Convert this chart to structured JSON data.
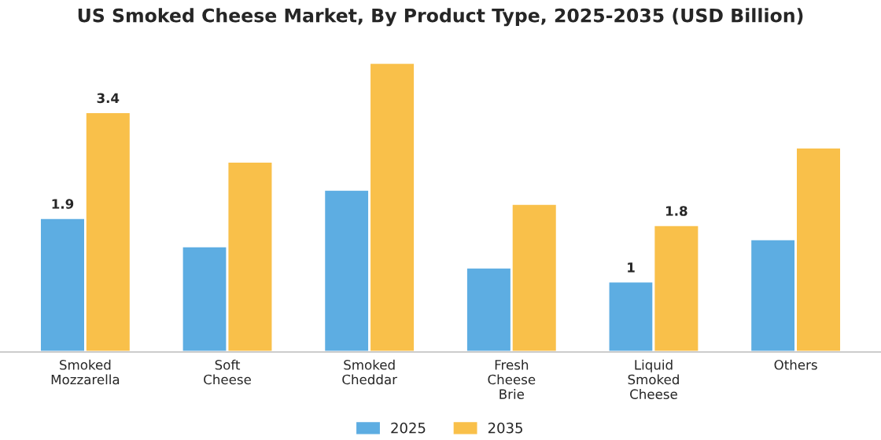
{
  "chart_data": {
    "type": "bar",
    "title": "US Smoked Cheese Market, By Product Type, 2025-2035 (USD Billion)",
    "categories": [
      "Smoked\nMozzarella",
      "Soft\nCheese",
      "Smoked\nCheddar",
      "Fresh\nCheese\nBrie",
      "Liquid\nSmoked\nCheese",
      "Others"
    ],
    "series": [
      {
        "name": "2025",
        "color": "#5dade2",
        "values": [
          1.9,
          1.5,
          2.3,
          1.2,
          1.0,
          1.6
        ],
        "value_labels": [
          "1.9",
          null,
          null,
          null,
          "1",
          null
        ]
      },
      {
        "name": "2035",
        "color": "#f9c04a",
        "values": [
          3.4,
          2.7,
          4.1,
          2.1,
          1.8,
          2.9
        ],
        "value_labels": [
          "3.4",
          null,
          null,
          null,
          "1.8",
          null
        ]
      }
    ],
    "legend": "bottom",
    "grid": false,
    "tick_labels": "x"
  }
}
